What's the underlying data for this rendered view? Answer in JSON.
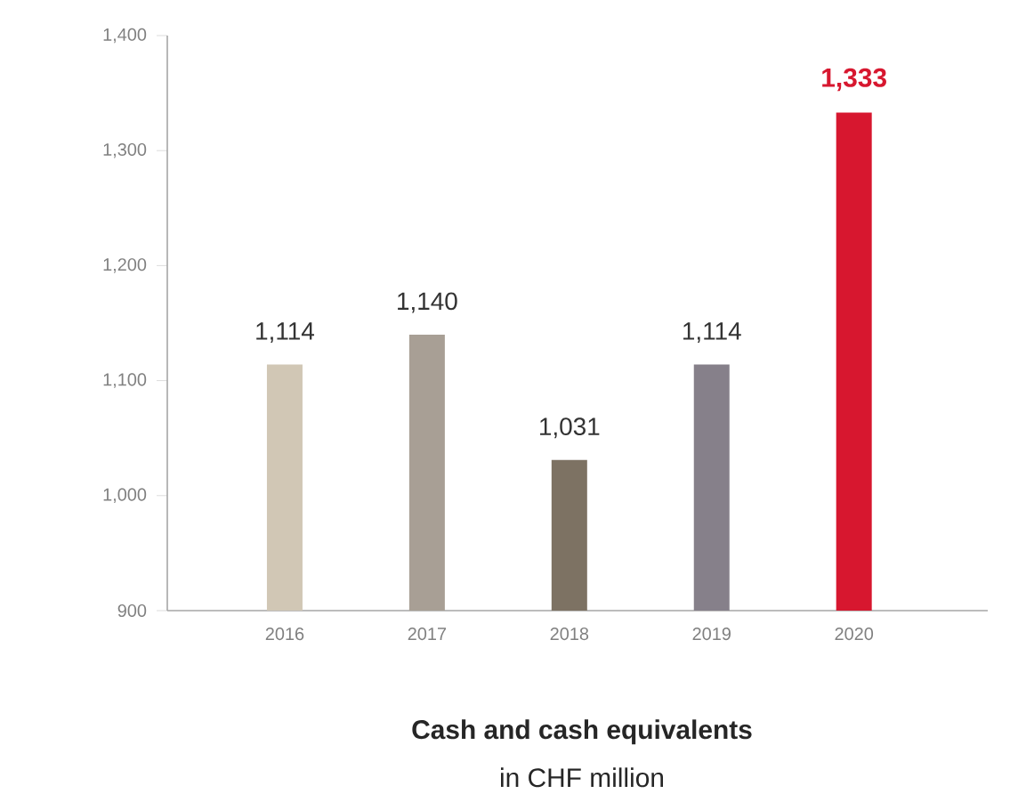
{
  "chart_data": {
    "type": "bar",
    "title": "Cash and cash equivalents",
    "subtitle": "in CHF million",
    "categories": [
      "2016",
      "2017",
      "2018",
      "2019",
      "2020"
    ],
    "values": [
      1114,
      1140,
      1031,
      1114,
      1333
    ],
    "colors": [
      "#d1c7b5",
      "#a89f95",
      "#7d7263",
      "#86808a",
      "#d7172f"
    ],
    "value_labels": [
      "1,114",
      "1,140",
      "1,031",
      "1,114",
      "1,333"
    ],
    "ylim": [
      900,
      1400
    ],
    "yticks": [
      {
        "value": 900,
        "label": "900"
      },
      {
        "value": 1000,
        "label": "1,000"
      },
      {
        "value": 1100,
        "label": "1,100"
      },
      {
        "value": 1200,
        "label": "1,200"
      },
      {
        "value": 1300,
        "label": "1,300"
      },
      {
        "value": 1400,
        "label": "1,400"
      }
    ],
    "grid": false
  }
}
